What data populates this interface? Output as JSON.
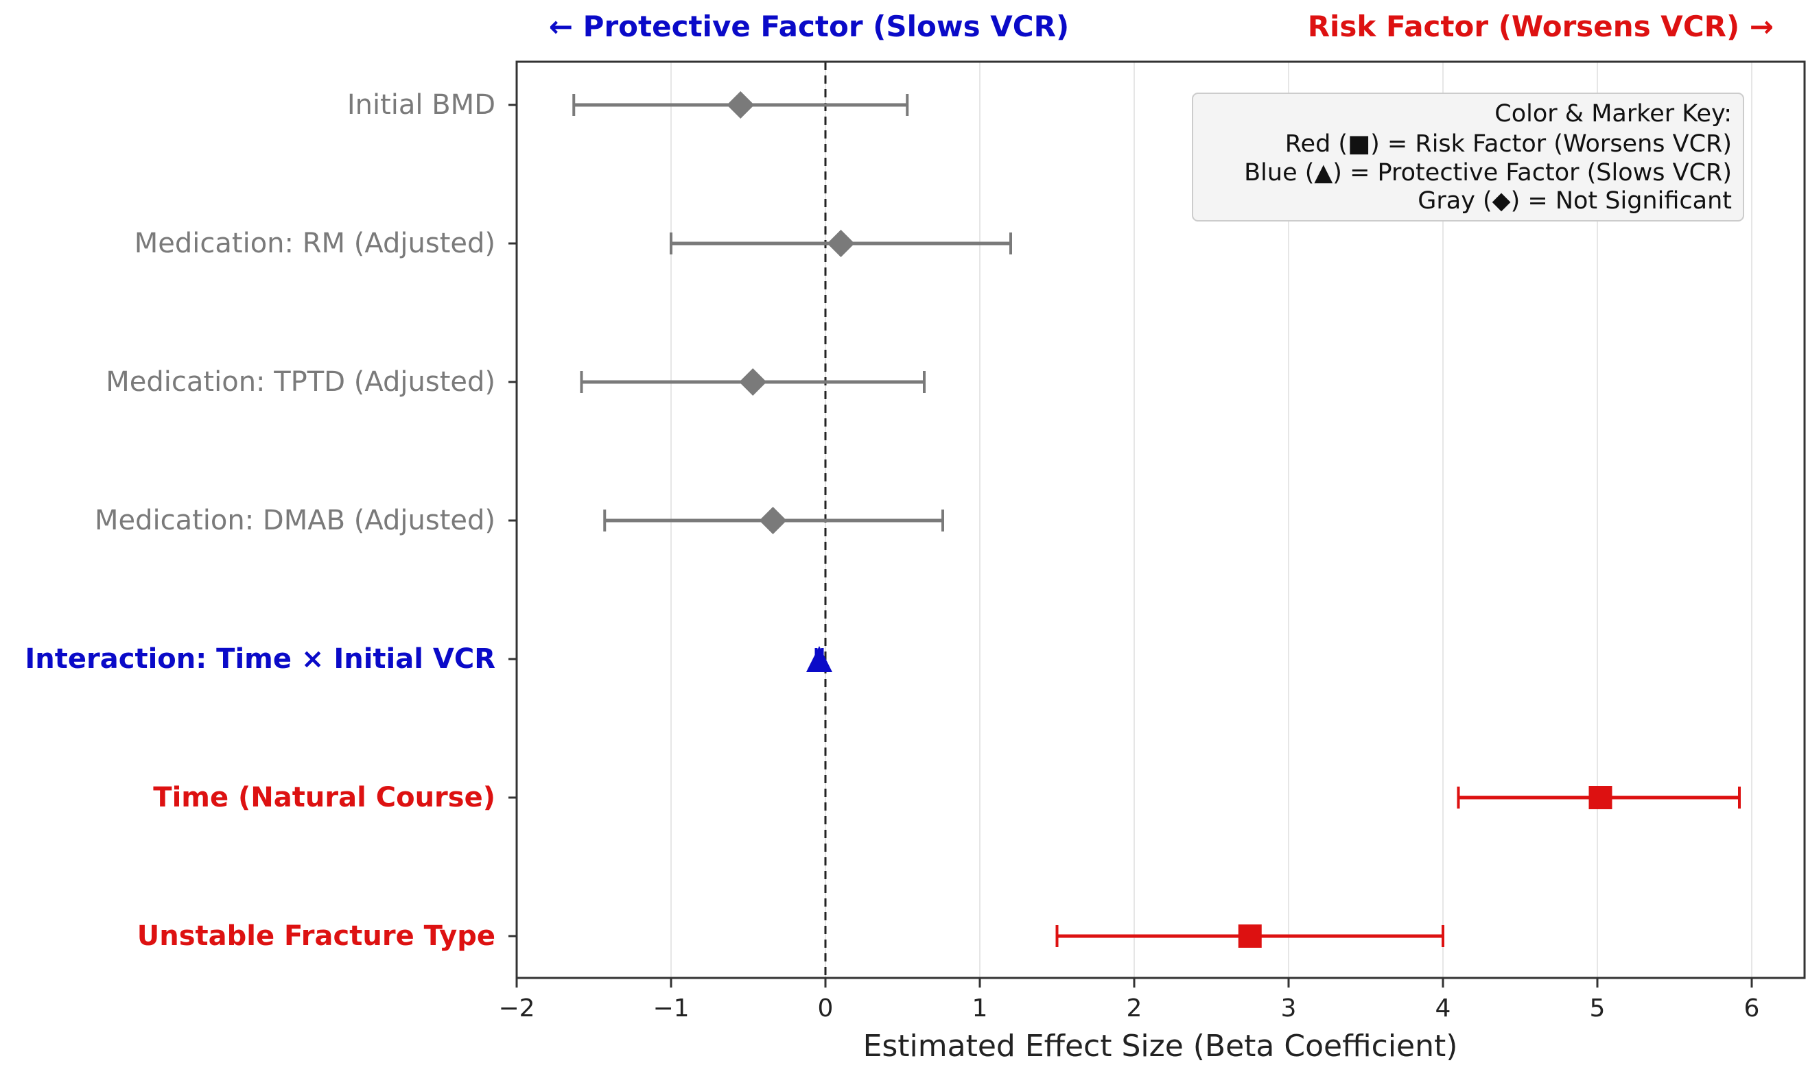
{
  "chart_data": {
    "type": "forest",
    "title_left": "← Protective Factor (Slows VCR)",
    "title_right": "Risk Factor (Worsens VCR) →",
    "xlabel": "Estimated Effect Size (Beta Coefficient)",
    "xlim": [
      -2,
      6.3
    ],
    "xticks": [
      -2,
      -1,
      0,
      1,
      2,
      3,
      4,
      5,
      6
    ],
    "xtick_labels": [
      "−2",
      "−1",
      "0",
      "1",
      "2",
      "3",
      "4",
      "5",
      "6"
    ],
    "reference_line": 0,
    "rows": [
      {
        "label": "Initial BMD",
        "estimate": -0.55,
        "ci": [
          -1.63,
          0.53
        ],
        "category": "not_significant",
        "marker": "diamond"
      },
      {
        "label": "Medication: RM (Adjusted)",
        "estimate": 0.1,
        "ci": [
          -1.0,
          1.2
        ],
        "category": "not_significant",
        "marker": "diamond"
      },
      {
        "label": "Medication: TPTD (Adjusted)",
        "estimate": -0.47,
        "ci": [
          -1.58,
          0.64
        ],
        "category": "not_significant",
        "marker": "diamond"
      },
      {
        "label": "Medication: DMAB (Adjusted)",
        "estimate": -0.34,
        "ci": [
          -1.43,
          0.76
        ],
        "category": "not_significant",
        "marker": "diamond"
      },
      {
        "label": "Interaction: Time × Initial VCR",
        "estimate": -0.04,
        "ci": [
          -0.06,
          -0.02
        ],
        "category": "protective",
        "marker": "triangle"
      },
      {
        "label": "Time (Natural Course)",
        "estimate": 5.02,
        "ci": [
          4.1,
          5.92
        ],
        "category": "risk",
        "marker": "square"
      },
      {
        "label": "Unstable Fracture Type",
        "estimate": 2.75,
        "ci": [
          1.5,
          4.0
        ],
        "category": "risk",
        "marker": "square"
      }
    ],
    "legend": {
      "position": "top-right",
      "title": "Color & Marker Key:",
      "entries": [
        "Red (■) = Risk Factor (Worsens VCR)",
        "Blue (▲) = Protective Factor (Slows VCR)",
        "Gray (◆) = Not Significant"
      ]
    },
    "colors": {
      "risk": "#dd1111",
      "protective": "#0a0ac8",
      "not_significant": "#7a7a7a",
      "grid": "#e6e6e6",
      "axis": "#333333",
      "legend_bg": "#f4f4f4",
      "legend_border": "#cccccc"
    }
  }
}
